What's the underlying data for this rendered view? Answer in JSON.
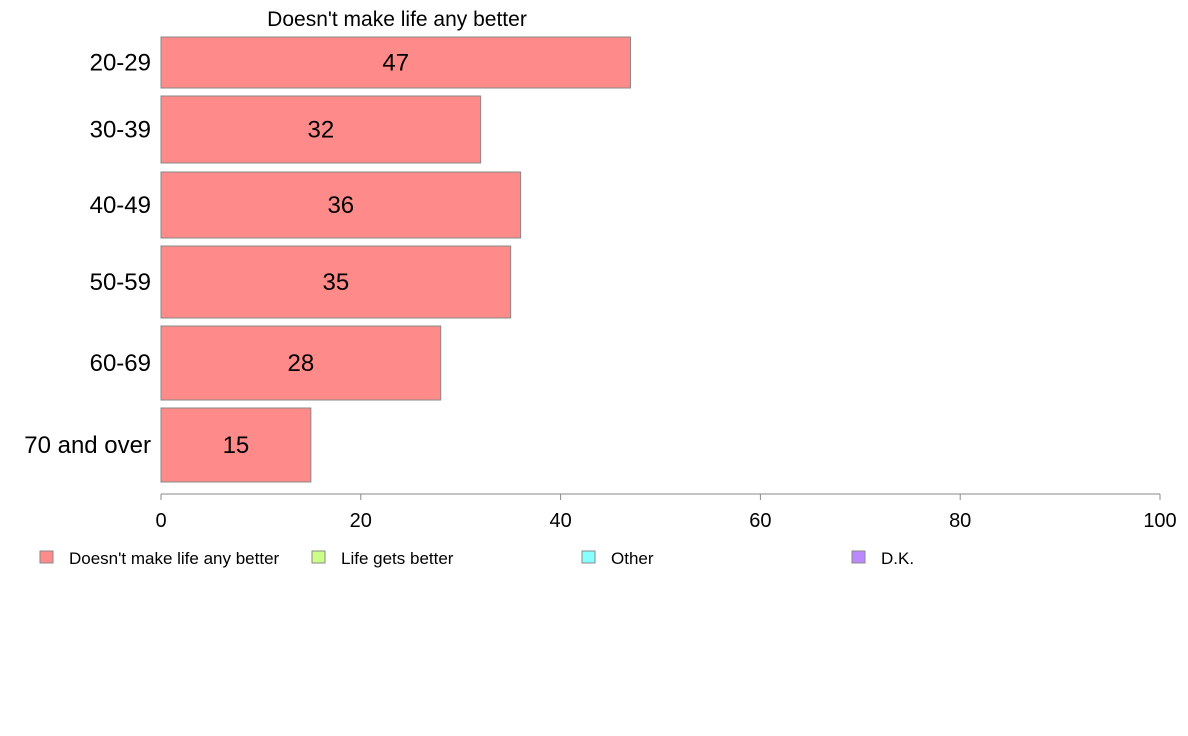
{
  "chart_data": {
    "type": "bar",
    "orientation": "horizontal",
    "title": "Doesn't make life any better",
    "categories": [
      "20-29",
      "30-39",
      "40-49",
      "50-59",
      "60-69",
      "70 and over"
    ],
    "values": [
      47,
      32,
      36,
      35,
      28,
      15
    ],
    "xlim": [
      0,
      100
    ],
    "xticks": [
      0,
      20,
      40,
      60,
      80,
      100
    ],
    "grid": false,
    "bar_color": "#ff8a8a",
    "legend_placement": "bottom",
    "legend": [
      {
        "label": "Doesn't make life any better",
        "color": "#ff8a8a"
      },
      {
        "label": "Life gets better",
        "color": "#ccff88"
      },
      {
        "label": "Other",
        "color": "#88ffff"
      },
      {
        "label": "D.K.",
        "color": "#bb88ff"
      }
    ]
  }
}
